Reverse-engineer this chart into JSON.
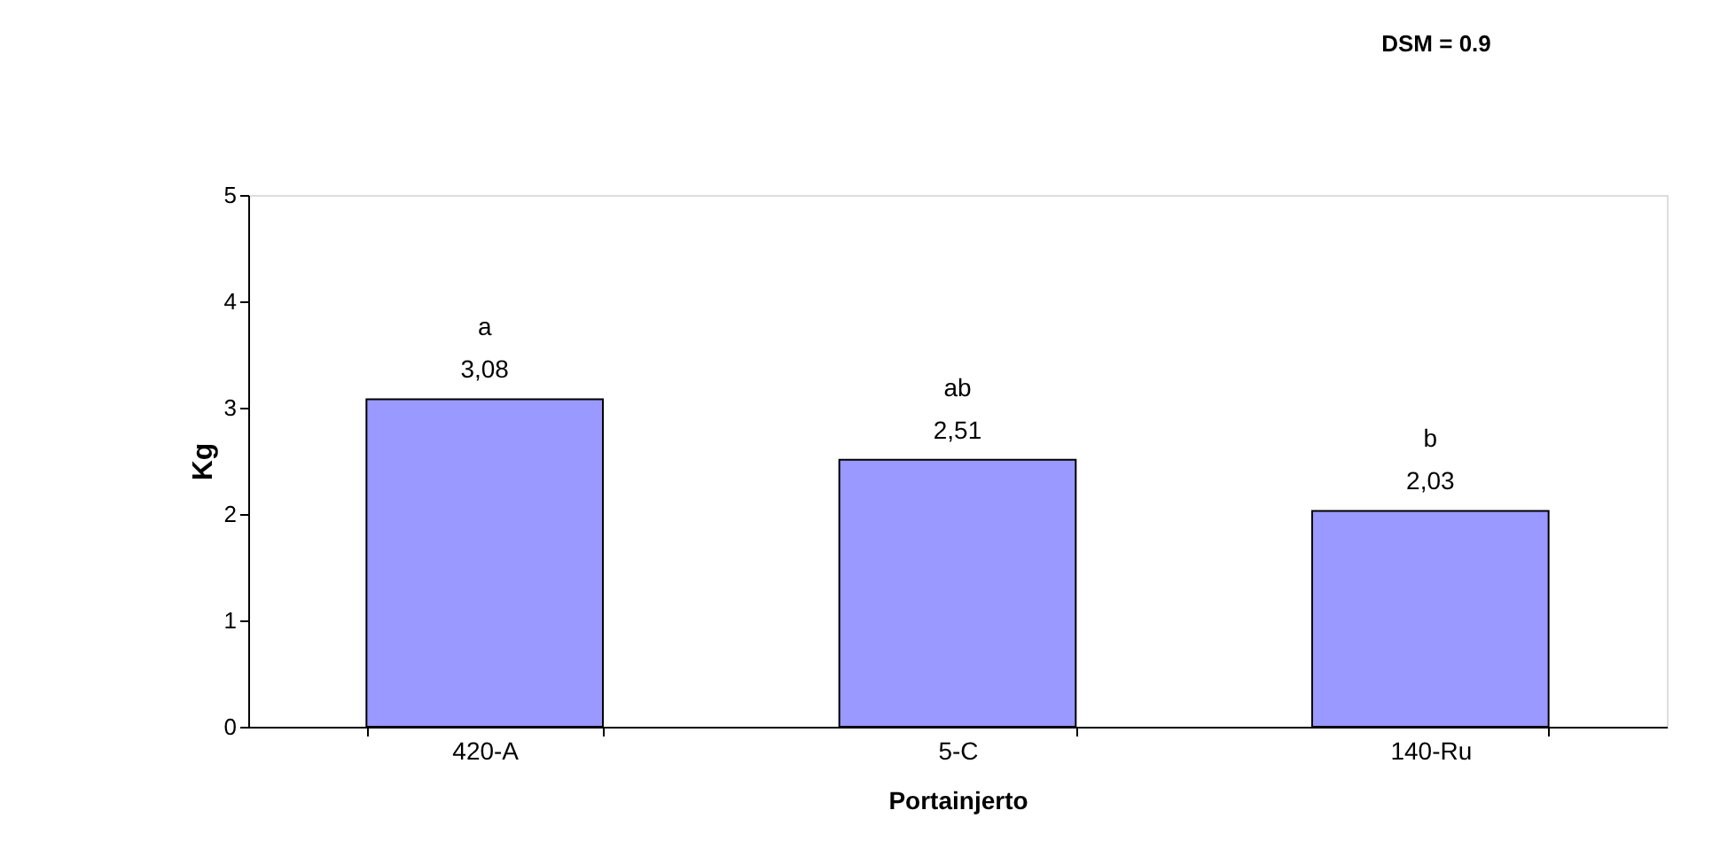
{
  "chart_data": {
    "type": "bar",
    "categories": [
      "420-A",
      "5-C",
      "140-Ru"
    ],
    "values": [
      3.08,
      2.51,
      2.03
    ],
    "value_labels": [
      "3,08",
      "2,51",
      "2,03"
    ],
    "color": "#9999ff",
    "xlabel": "Portainjerto",
    "ylabel": "Kg",
    "ylim": [
      0,
      5
    ],
    "yticks": [
      0,
      1,
      2,
      3,
      4,
      5
    ],
    "grid": false,
    "annotations": [
      "DSM = 0.9",
      {
        "text": "a",
        "x": "420-A",
        "y": 3.08
      },
      {
        "text": "ab",
        "x": "5-C",
        "y": 2.51
      },
      {
        "text": "b",
        "x": "140-Ru",
        "y": 2.03
      }
    ]
  }
}
